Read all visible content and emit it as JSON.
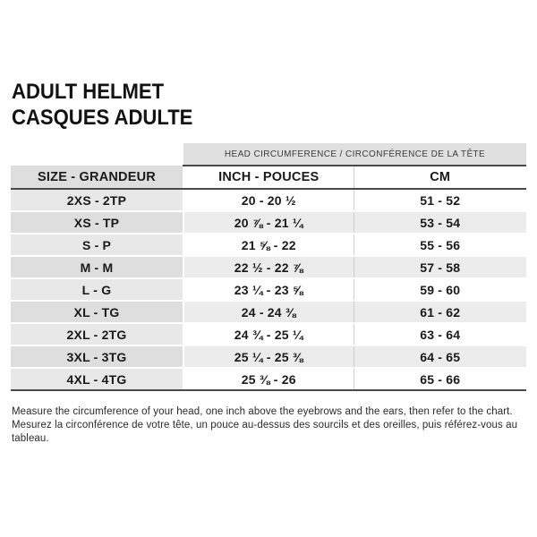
{
  "page": {
    "title_line1": "ADULT HELMET",
    "title_line2": "CASQUES ADULTE"
  },
  "table": {
    "band_header": "HEAD CIRCUMFERENCE / CIRCONFÉRENCE DE LA TÊTE",
    "columns": {
      "size": "SIZE - GRANDEUR",
      "inch": "INCH - POUCES",
      "cm": "CM"
    },
    "rows": [
      {
        "size": "2XS - 2TP",
        "inch": "20 - 20 ½",
        "cm": "51 - 52"
      },
      {
        "size": "XS - TP",
        "inch": "20 ⅞ - 21 ¼",
        "cm": "53 - 54"
      },
      {
        "size": "S - P",
        "inch": "21 ⅝ - 22",
        "cm": "55 - 56"
      },
      {
        "size": "M - M",
        "inch": "22 ½ - 22 ⅞",
        "cm": "57 - 58"
      },
      {
        "size": "L - G",
        "inch": "23 ¼ - 23 ⅝",
        "cm": "59 - 60"
      },
      {
        "size": "XL - TG",
        "inch": "24 - 24 ⅜",
        "cm": "61 - 62"
      },
      {
        "size": "2XL - 2TG",
        "inch": "24 ¾ - 25 ¼",
        "cm": "63 - 64"
      },
      {
        "size": "3XL - 3TG",
        "inch": "25 ¼ - 25 ⅜",
        "cm": "64 - 65"
      },
      {
        "size": "4XL - 4TG",
        "inch": "25 ⅜ - 26",
        "cm": "65 - 66"
      }
    ]
  },
  "footnote": {
    "line_en": "Measure the circumference of your head, one inch above the eyebrows and the ears, then refer to the chart.",
    "line_fr": "Mesurez la circonférence de votre tête, un pouce au-dessus des sourcils et des oreilles, puis référez-vous au tableau."
  },
  "colors": {
    "band-bg": "#e0e0e0",
    "size-odd": "#e8e8e8",
    "size-even": "#dedede",
    "row-even": "#ececec",
    "rule-dark": "#4a4a4a"
  }
}
